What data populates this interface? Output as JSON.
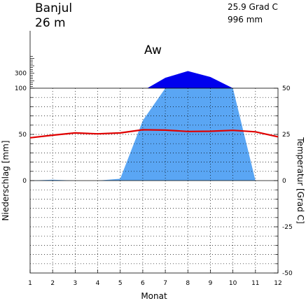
{
  "station": {
    "name": "Banjul",
    "elevation": "26 m",
    "mean_temp": "25.9 Grad C",
    "annual_precip": "996 mm",
    "climate_class": "Aw"
  },
  "chart_data": {
    "type": "area",
    "title": "Banjul",
    "xlabel": "Monat",
    "ylabel_left": "Niederschlag [mm]",
    "ylabel_right": "Temperatur [Grad C]",
    "x": [
      1,
      2,
      3,
      4,
      5,
      6,
      7,
      8,
      9,
      10,
      11,
      12
    ],
    "x_ticks": [
      "1",
      "2",
      "3",
      "4",
      "5",
      "6",
      "7",
      "8",
      "9",
      "10",
      "11",
      "12"
    ],
    "precip_ticks": [
      "0",
      "50",
      "100",
      "300"
    ],
    "temp_ticks": [
      "-50",
      "-25",
      "0",
      "25",
      "50"
    ],
    "precip_range": [
      0,
      100
    ],
    "precip_compressed_max": 400,
    "temp_range": [
      -50,
      50
    ],
    "series": [
      {
        "key": "precipitation",
        "unit": "mm",
        "values": [
          0,
          1,
          0,
          0,
          2,
          65,
          240,
          330,
          250,
          100,
          0,
          0
        ]
      },
      {
        "key": "temperature",
        "unit": "Grad C",
        "values": [
          23.2,
          24.6,
          25.8,
          25.3,
          25.8,
          27.5,
          27.3,
          26.6,
          26.7,
          27.2,
          26.4,
          23.7
        ]
      }
    ],
    "colors": {
      "precip_normal": "#5aa6f4",
      "precip_excess": "#0000ee",
      "temperature": "#e00000",
      "grid": "#000000"
    },
    "grid": true
  }
}
